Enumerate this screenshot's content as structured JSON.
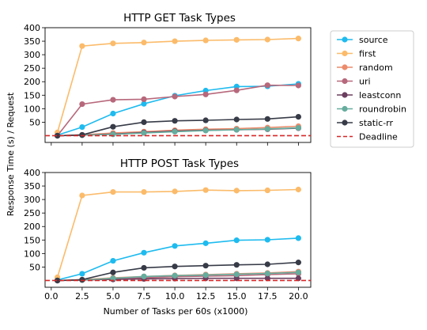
{
  "chart_data": [
    {
      "type": "line",
      "title": "HTTP GET Task Types",
      "xlabel": "",
      "ylabel": "Response Time (s) / Request",
      "x": [
        0.5,
        2.5,
        5.0,
        7.5,
        10.0,
        12.5,
        15.0,
        17.5,
        20.0
      ],
      "xlim": [
        -0.5,
        21.0
      ],
      "ylim": [
        -25,
        400
      ],
      "yticks": [
        50,
        100,
        150,
        200,
        250,
        300,
        350,
        400
      ],
      "series": [
        {
          "name": "source",
          "color": "#1ebbef",
          "values": [
            2,
            32,
            82,
            118,
            148,
            167,
            182,
            183,
            192
          ]
        },
        {
          "name": "first",
          "color": "#fbbb6a",
          "values": [
            12,
            332,
            342,
            345,
            350,
            353,
            355,
            356,
            360
          ]
        },
        {
          "name": "random",
          "color": "#ec8c6c",
          "values": [
            0,
            3,
            10,
            15,
            20,
            24,
            26,
            30,
            35
          ]
        },
        {
          "name": "uri",
          "color": "#b7687b",
          "values": [
            0,
            117,
            133,
            135,
            145,
            153,
            168,
            187,
            186
          ]
        },
        {
          "name": "leastconn",
          "color": "#6b3f5f",
          "values": [
            0,
            2,
            6,
            12,
            17,
            20,
            22,
            24,
            28
          ]
        },
        {
          "name": "roundrobin",
          "color": "#66ad9e",
          "values": [
            0,
            2,
            5,
            10,
            15,
            19,
            22,
            25,
            29
          ]
        },
        {
          "name": "static-rr",
          "color": "#373b47",
          "values": [
            0,
            3,
            33,
            50,
            55,
            57,
            60,
            62,
            70
          ]
        },
        {
          "name": "Deadline",
          "color": "#d62728",
          "dashed": true,
          "value": 0
        }
      ]
    },
    {
      "type": "line",
      "title": "HTTP POST Task Types",
      "xlabel": "Number of Tasks per 60s (x1000)",
      "ylabel": "",
      "x": [
        0.5,
        2.5,
        5.0,
        7.5,
        10.0,
        12.5,
        15.0,
        17.5,
        20.0
      ],
      "xlim": [
        -0.5,
        21.0
      ],
      "ylim": [
        -25,
        400
      ],
      "xticks": [
        0.0,
        2.5,
        5.0,
        7.5,
        10.0,
        12.5,
        15.0,
        17.5,
        20.0
      ],
      "xtick_labels": [
        "0.0",
        "2.5",
        "5.0",
        "7.5",
        "10.0",
        "12.5",
        "15.0",
        "17.5",
        "20.0"
      ],
      "yticks": [
        50,
        100,
        150,
        200,
        250,
        300,
        350,
        400
      ],
      "series": [
        {
          "name": "source",
          "color": "#1ebbef",
          "values": [
            2,
            25,
            73,
            103,
            128,
            138,
            149,
            151,
            157
          ]
        },
        {
          "name": "first",
          "color": "#fbbb6a",
          "values": [
            12,
            315,
            328,
            328,
            330,
            335,
            333,
            334,
            337
          ]
        },
        {
          "name": "random",
          "color": "#ec8c6c",
          "values": [
            0,
            3,
            10,
            15,
            19,
            22,
            25,
            28,
            33
          ]
        },
        {
          "name": "uri",
          "color": "#b7687b",
          "values": [
            0,
            2,
            6,
            10,
            14,
            16,
            18,
            22,
            25
          ]
        },
        {
          "name": "leastconn",
          "color": "#6b3f5f",
          "values": [
            0,
            2,
            4,
            6,
            7,
            8,
            8,
            8,
            8
          ]
        },
        {
          "name": "roundrobin",
          "color": "#66ad9e",
          "values": [
            0,
            2,
            8,
            15,
            18,
            20,
            23,
            26,
            30
          ]
        },
        {
          "name": "static-rr",
          "color": "#373b47",
          "values": [
            0,
            3,
            30,
            47,
            52,
            55,
            58,
            60,
            67
          ]
        },
        {
          "name": "Deadline",
          "color": "#d62728",
          "dashed": true,
          "value": 0
        }
      ]
    }
  ],
  "legend": {
    "placement": "right",
    "entries": [
      {
        "label": "source",
        "color": "#1ebbef",
        "style": "marker-line"
      },
      {
        "label": "first",
        "color": "#fbbb6a",
        "style": "marker-line"
      },
      {
        "label": "random",
        "color": "#ec8c6c",
        "style": "marker-line"
      },
      {
        "label": "uri",
        "color": "#b7687b",
        "style": "marker-line"
      },
      {
        "label": "leastconn",
        "color": "#6b3f5f",
        "style": "marker-line"
      },
      {
        "label": "roundrobin",
        "color": "#66ad9e",
        "style": "marker-line"
      },
      {
        "label": "static-rr",
        "color": "#373b47",
        "style": "marker-line"
      },
      {
        "label": "Deadline",
        "color": "#d62728",
        "style": "dashed-line"
      }
    ]
  }
}
